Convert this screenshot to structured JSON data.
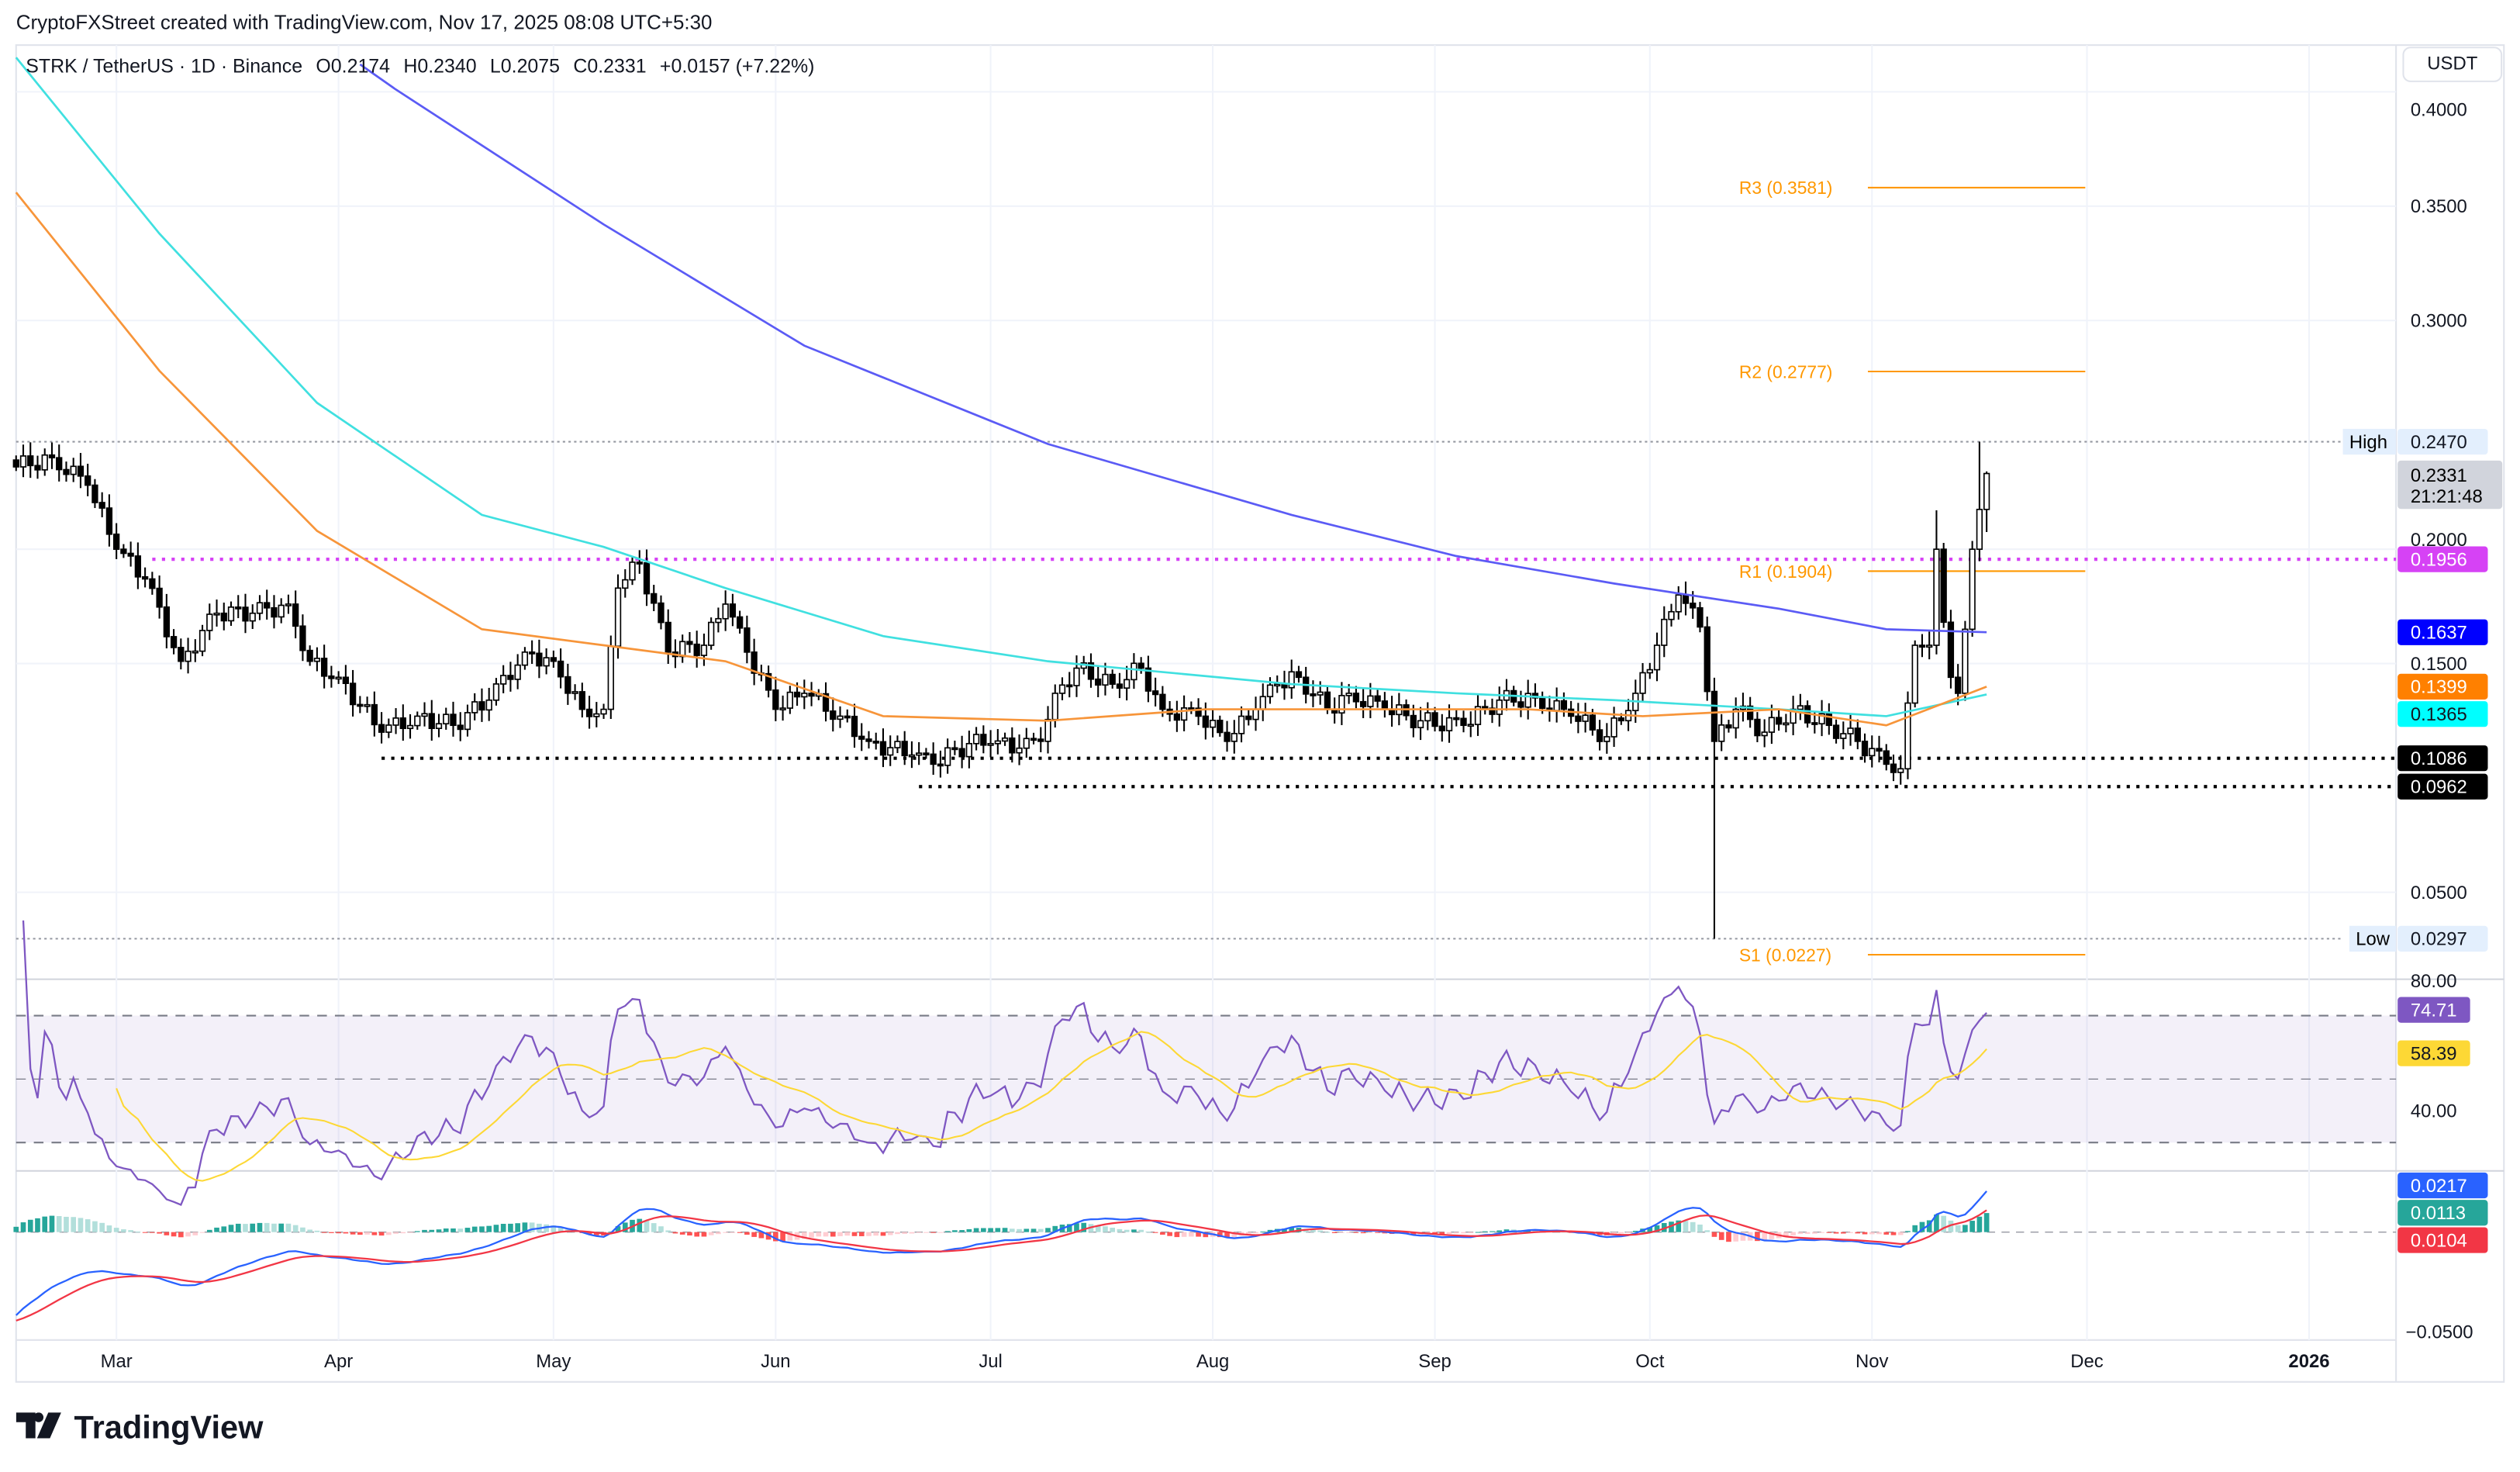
{
  "header": {
    "credit": "CryptoFXStreet created with TradingView.com, Nov 17, 2025 08:08 UTC+5:30",
    "symbol": "STRK / TetherUS · 1D · Binance",
    "open": "O0.2174",
    "high": "H0.2340",
    "low": "L0.2075",
    "close": "C0.2331",
    "change": "+0.0157 (+7.22%)",
    "currency_button": "USDT"
  },
  "price_axis": {
    "ticks": [
      "0.4000",
      "0.3500",
      "0.3000",
      "0.2000",
      "0.1500",
      "0.0500"
    ],
    "tick_values": [
      0.4,
      0.35,
      0.3,
      0.2,
      0.15,
      0.05
    ],
    "high_label": "High",
    "high_value": "0.2470",
    "low_label": "Low",
    "low_value": "0.0297",
    "last_price": "0.2331",
    "countdown": "21:21:48",
    "tags": [
      {
        "text": "0.1956",
        "value": 0.1956,
        "bg": "#d642f5",
        "fg": "#ffffff"
      },
      {
        "text": "0.1637",
        "value": 0.1637,
        "bg": "#0000ff",
        "fg": "#ffffff"
      },
      {
        "text": "0.1399",
        "value": 0.1399,
        "bg": "#ff8000",
        "fg": "#ffffff"
      },
      {
        "text": "0.1365",
        "value": 0.1365,
        "bg": "#00ffff",
        "fg": "#131722"
      },
      {
        "text": "0.1086",
        "value": 0.1086,
        "bg": "#000000",
        "fg": "#ffffff"
      },
      {
        "text": "0.0962",
        "value": 0.0962,
        "bg": "#000000",
        "fg": "#ffffff"
      }
    ]
  },
  "pivots": [
    {
      "label": "R3 (0.3581)",
      "value": 0.3581
    },
    {
      "label": "R2 (0.2777)",
      "value": 0.2777
    },
    {
      "label": "R1 (0.1904)",
      "value": 0.1904
    },
    {
      "label": "S1 (0.0227)",
      "value": 0.0227
    }
  ],
  "pivot_color": "#ff9800",
  "levels": [
    {
      "value": 0.1956,
      "from": "2025-03-06",
      "color": "#d642f5"
    },
    {
      "value": 0.1086,
      "from": "2025-04-07",
      "color": "#000000"
    },
    {
      "value": 0.0962,
      "from": "2025-06-21",
      "color": "#000000"
    }
  ],
  "rsi_axis": {
    "ticks": [
      "80.00",
      "40.00"
    ],
    "tick_values": [
      80,
      40
    ],
    "rsi_value": "74.71",
    "rsi_ma_value": "58.39",
    "rsi_color": "#7e57c2",
    "ma_color": "#fdd835"
  },
  "macd_axis": {
    "ticks": [
      "−0.0500"
    ],
    "tick_values": [
      -0.05
    ],
    "macd_value": "0.0217",
    "hist_value": "0.0113",
    "signal_value": "0.0104"
  },
  "x_axis": {
    "labels": [
      "Mar",
      "Apr",
      "May",
      "Jun",
      "Jul",
      "Aug",
      "Sep",
      "Oct",
      "Nov",
      "Dec",
      "2026"
    ]
  },
  "logo": "TradingView",
  "chart_data": {
    "type": "candlestick",
    "close_keypoints": [
      [
        "2025-02-15",
        0.236
      ],
      [
        "2025-02-20",
        0.24
      ],
      [
        "2025-02-25",
        0.228
      ],
      [
        "2025-03-01",
        0.2
      ],
      [
        "2025-03-05",
        0.187
      ],
      [
        "2025-03-10",
        0.151
      ],
      [
        "2025-03-15",
        0.172
      ],
      [
        "2025-03-20",
        0.172
      ],
      [
        "2025-03-25",
        0.176
      ],
      [
        "2025-03-28",
        0.151
      ],
      [
        "2025-04-01",
        0.144
      ],
      [
        "2025-04-07",
        0.12
      ],
      [
        "2025-04-12",
        0.127
      ],
      [
        "2025-04-17",
        0.123
      ],
      [
        "2025-04-22",
        0.134
      ],
      [
        "2025-04-27",
        0.155
      ],
      [
        "2025-05-01",
        0.151
      ],
      [
        "2025-05-05",
        0.13
      ],
      [
        "2025-05-08",
        0.13
      ],
      [
        "2025-05-10",
        0.183
      ],
      [
        "2025-05-13",
        0.194
      ],
      [
        "2025-05-17",
        0.155
      ],
      [
        "2025-05-22",
        0.158
      ],
      [
        "2025-05-25",
        0.176
      ],
      [
        "2025-05-28",
        0.155
      ],
      [
        "2025-06-01",
        0.13
      ],
      [
        "2025-06-05",
        0.137
      ],
      [
        "2025-06-10",
        0.127
      ],
      [
        "2025-06-14",
        0.116
      ],
      [
        "2025-06-20",
        0.11
      ],
      [
        "2025-06-23",
        0.106
      ],
      [
        "2025-06-28",
        0.115
      ],
      [
        "2025-07-01",
        0.115
      ],
      [
        "2025-07-05",
        0.113
      ],
      [
        "2025-07-08",
        0.116
      ],
      [
        "2025-07-10",
        0.137
      ],
      [
        "2025-07-13",
        0.148
      ],
      [
        "2025-07-18",
        0.141
      ],
      [
        "2025-07-22",
        0.148
      ],
      [
        "2025-07-25",
        0.13
      ],
      [
        "2025-07-30",
        0.127
      ],
      [
        "2025-08-03",
        0.116
      ],
      [
        "2025-08-07",
        0.13
      ],
      [
        "2025-08-10",
        0.141
      ],
      [
        "2025-08-13",
        0.144
      ],
      [
        "2025-08-17",
        0.13
      ],
      [
        "2025-08-20",
        0.137
      ],
      [
        "2025-08-25",
        0.13
      ],
      [
        "2025-08-30",
        0.125
      ],
      [
        "2025-09-05",
        0.123
      ],
      [
        "2025-09-10",
        0.134
      ],
      [
        "2025-09-15",
        0.135
      ],
      [
        "2025-09-20",
        0.127
      ],
      [
        "2025-09-25",
        0.118
      ],
      [
        "2025-09-29",
        0.137
      ],
      [
        "2025-10-02",
        0.158
      ],
      [
        "2025-10-05",
        0.18
      ],
      [
        "2025-10-08",
        0.166
      ],
      [
        "2025-10-10",
        0.116
      ],
      [
        "2025-10-13",
        0.13
      ],
      [
        "2025-10-17",
        0.12
      ],
      [
        "2025-10-21",
        0.13
      ],
      [
        "2025-10-26",
        0.123
      ],
      [
        "2025-10-30",
        0.116
      ],
      [
        "2025-11-03",
        0.106
      ],
      [
        "2025-11-05",
        0.104
      ],
      [
        "2025-11-07",
        0.158
      ],
      [
        "2025-11-09",
        0.158
      ],
      [
        "2025-11-10",
        0.2
      ],
      [
        "2025-11-12",
        0.144
      ],
      [
        "2025-11-13",
        0.137
      ],
      [
        "2025-11-14",
        0.165
      ],
      [
        "2025-11-15",
        0.2
      ],
      [
        "2025-11-16",
        0.2174
      ],
      [
        "2025-11-17",
        0.2331
      ]
    ],
    "exact_candles": [
      {
        "date": "2025-10-10",
        "l": 0.0297
      },
      {
        "date": "2025-11-10",
        "h": 0.217
      },
      {
        "date": "2025-11-16",
        "h": 0.247
      },
      {
        "date": "2025-11-17",
        "o": 0.2174,
        "h": 0.234,
        "l": 0.2075,
        "c": 0.2331
      }
    ],
    "moving_averages": [
      {
        "color": "#5b5bf5",
        "points": [
          [
            "2025-04-04",
            0.412
          ],
          [
            "2025-04-09",
            0.401
          ],
          [
            "2025-05-08",
            0.342
          ],
          [
            "2025-06-05",
            0.289
          ],
          [
            "2025-07-09",
            0.246
          ],
          [
            "2025-08-12",
            0.215
          ],
          [
            "2025-09-04",
            0.197
          ],
          [
            "2025-09-26",
            0.185
          ],
          [
            "2025-10-19",
            0.174
          ],
          [
            "2025-11-03",
            0.165
          ],
          [
            "2025-11-17",
            0.1637
          ]
        ]
      },
      {
        "color": "#40e0e0",
        "points": [
          [
            "2025-02-15",
            0.415
          ],
          [
            "2025-03-07",
            0.338
          ],
          [
            "2025-03-29",
            0.264
          ],
          [
            "2025-04-21",
            0.215
          ],
          [
            "2025-05-08",
            0.201
          ],
          [
            "2025-05-25",
            0.183
          ],
          [
            "2025-06-16",
            0.162
          ],
          [
            "2025-07-09",
            0.151
          ],
          [
            "2025-08-12",
            0.141
          ],
          [
            "2025-09-04",
            0.137
          ],
          [
            "2025-09-26",
            0.134
          ],
          [
            "2025-10-19",
            0.13
          ],
          [
            "2025-11-03",
            0.127
          ],
          [
            "2025-11-17",
            0.1365
          ]
        ]
      },
      {
        "color": "#f7953a",
        "points": [
          [
            "2025-02-15",
            0.356
          ],
          [
            "2025-03-07",
            0.278
          ],
          [
            "2025-03-29",
            0.208
          ],
          [
            "2025-04-21",
            0.165
          ],
          [
            "2025-05-08",
            0.158
          ],
          [
            "2025-05-25",
            0.151
          ],
          [
            "2025-06-16",
            0.127
          ],
          [
            "2025-07-09",
            0.125
          ],
          [
            "2025-07-31",
            0.13
          ],
          [
            "2025-08-23",
            0.13
          ],
          [
            "2025-09-14",
            0.13
          ],
          [
            "2025-09-30",
            0.127
          ],
          [
            "2025-10-19",
            0.13
          ],
          [
            "2025-11-03",
            0.123
          ],
          [
            "2025-11-17",
            0.1399
          ]
        ]
      }
    ],
    "ylim": [
      0.0,
      0.4
    ],
    "rsi_levels": [
      70,
      50,
      30
    ],
    "grid": true
  }
}
